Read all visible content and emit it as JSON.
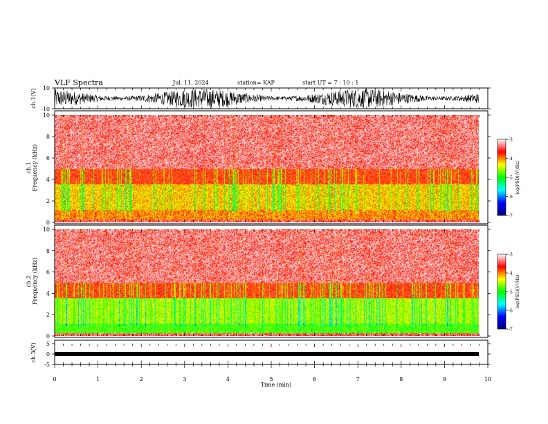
{
  "header": {
    "title": "VLF Spectra",
    "date": "Jul. 11, 2024",
    "station": "station= KAP",
    "start_time": "start UT =  7 : 10 : 1"
  },
  "chart_data": [
    {
      "type": "line",
      "name": "ch1-waveform",
      "ylabel": "ch.1(V)",
      "ylim": [
        -10,
        10
      ],
      "yticks": [
        "10",
        "-10"
      ],
      "xlim": [
        0,
        10
      ],
      "color": "#000000"
    },
    {
      "type": "heatmap",
      "name": "ch1-spectrogram",
      "ylabel": "ch.1\nFrequency (kHz)",
      "ylim": [
        0,
        10
      ],
      "yticks": [
        "0",
        "2",
        "4",
        "6",
        "8",
        "10"
      ],
      "xlim": [
        0,
        9.8
      ],
      "colorbar": {
        "label": "log(PSD)(V²/Hz)",
        "ticks": [
          "-3",
          "-4",
          "-5",
          "-6",
          "-7"
        ],
        "range": [
          -7,
          -3
        ]
      }
    },
    {
      "type": "heatmap",
      "name": "ch2-spectrogram",
      "ylabel": "ch.2\nFrequency (kHz)",
      "ylim": [
        0,
        10
      ],
      "yticks": [
        "0",
        "2",
        "4",
        "6",
        "8",
        "10"
      ],
      "xlim": [
        0,
        9.8
      ],
      "colorbar": {
        "label": "log(PSD)(V²/Hz)",
        "ticks": [
          "-3",
          "-4",
          "-5",
          "-6",
          "-7"
        ],
        "range": [
          -7,
          -3
        ]
      }
    },
    {
      "type": "line",
      "name": "ch3-waveform",
      "ylabel": "ch.3(V)",
      "ylim": [
        -5,
        5
      ],
      "yticks": [
        "5",
        "0",
        "-5"
      ],
      "xlim": [
        0,
        10
      ],
      "xlabel": "Time (min)",
      "xticks": [
        "0",
        "1",
        "2",
        "3",
        "4",
        "5",
        "6",
        "7",
        "8",
        "9",
        "10"
      ],
      "color": "#000000"
    }
  ],
  "colors": {
    "colormap": [
      "#000080",
      "#0000ff",
      "#00ffff",
      "#00ff00",
      "#ffff00",
      "#ff0000",
      "#ffffff"
    ],
    "frame": "#000000",
    "background": "#ffffff"
  }
}
